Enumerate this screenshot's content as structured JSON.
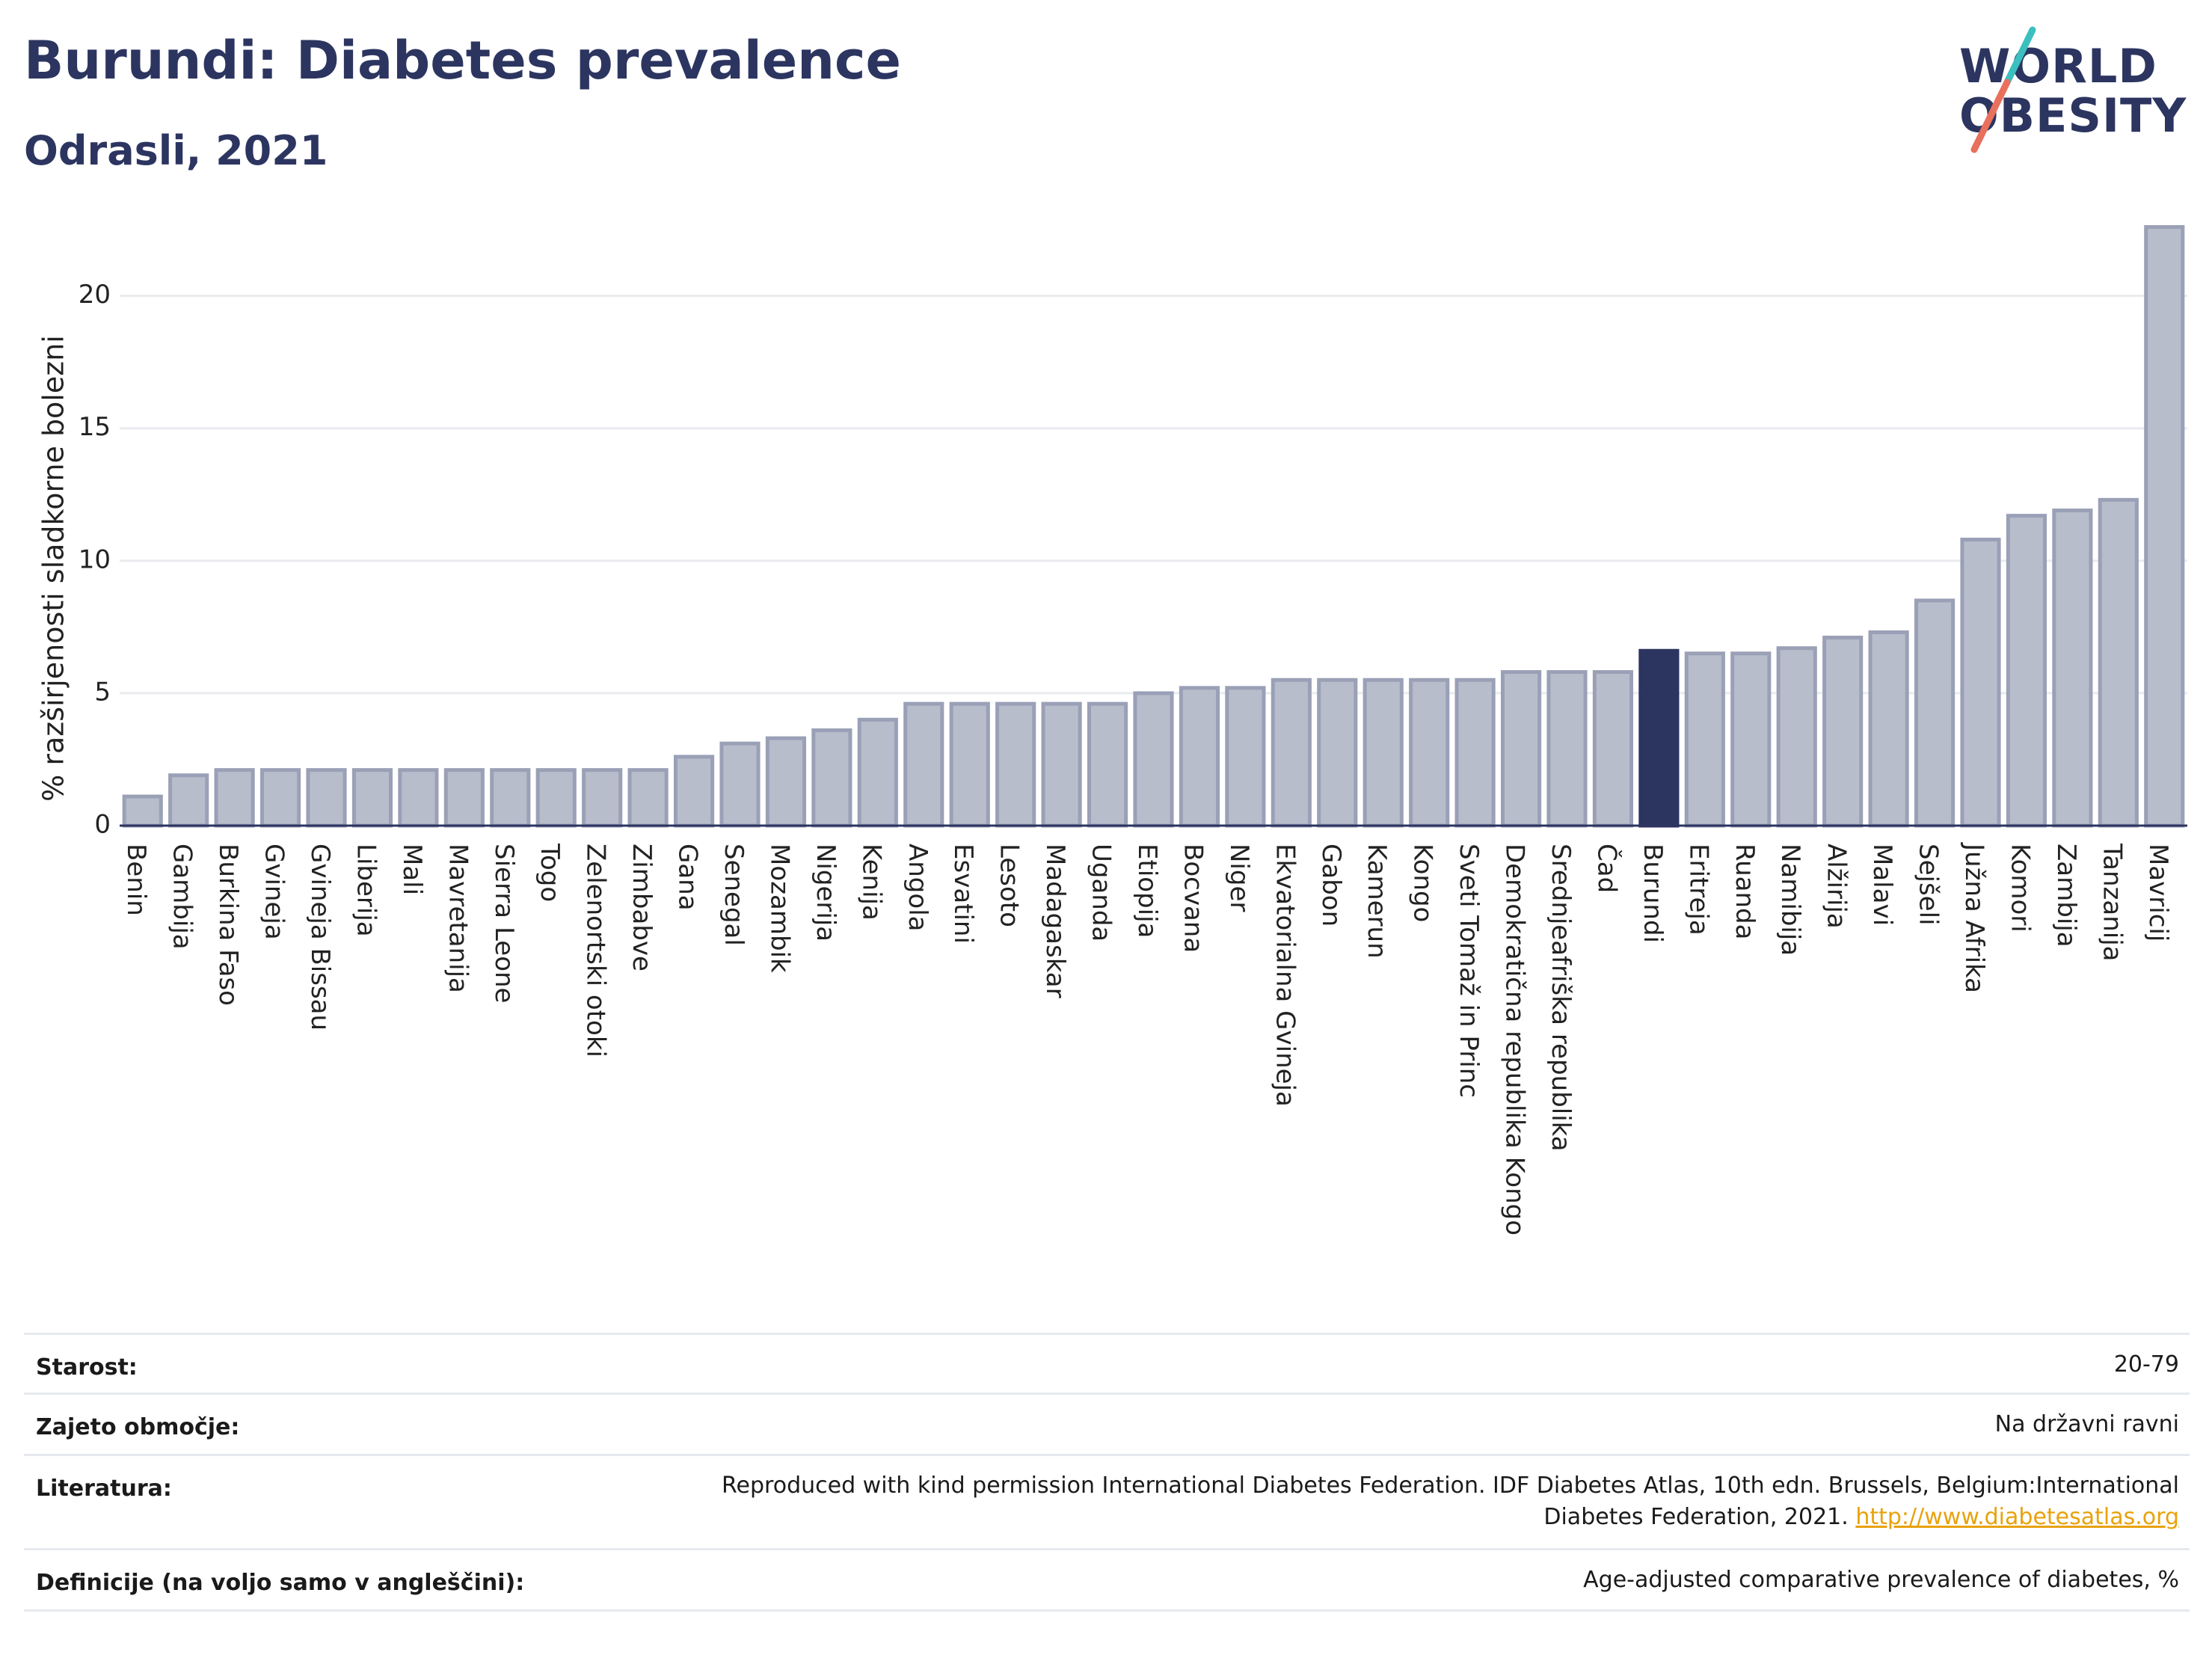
{
  "header": {
    "title": "Burundi: Diabetes prevalence",
    "subtitle": "Odrasli, 2021"
  },
  "logo": {
    "line1": "WORLD",
    "line2": "OBESITY",
    "colors": {
      "text": "#2c3560",
      "slash_top": "#3bbfbf",
      "slash_bottom": "#e8705c"
    }
  },
  "chart_data": {
    "type": "bar",
    "title": "",
    "xlabel": "",
    "ylabel": "% razširjenosti sladkorne bolezni",
    "ylim": [
      0,
      22.7
    ],
    "yticks": [
      0,
      5,
      10,
      15,
      20
    ],
    "grid": true,
    "highlight": "Burundi",
    "colors": {
      "bar": "#b8bdcc",
      "bar_stroke": "#9aa0b6",
      "highlight": "#2c3560",
      "grid": "#e9ebef"
    },
    "categories": [
      "Benin",
      "Gambija",
      "Burkina Faso",
      "Gvineja",
      "Gvineja Bissau",
      "Liberija",
      "Mali",
      "Mavretanija",
      "Sierra Leone",
      "Togo",
      "Zelenortski otoki",
      "Zimbabve",
      "Gana",
      "Senegal",
      "Mozambik",
      "Nigerija",
      "Kenija",
      "Angola",
      "Esvatini",
      "Lesoto",
      "Madagaskar",
      "Uganda",
      "Etiopija",
      "Bocvana",
      "Niger",
      "Ekvatorialna Gvineja",
      "Gabon",
      "Kamerun",
      "Kongo",
      "Sveti Tomaž in Princ",
      "Demokratična republika Kongo",
      "Srednjeafriška republika",
      "Čad",
      "Burundi",
      "Eritreja",
      "Ruanda",
      "Namibija",
      "Alžirija",
      "Malavi",
      "Sejšeli",
      "Južna Afrika",
      "Komori",
      "Zambija",
      "Tanzanija",
      "Mavricij"
    ],
    "values": [
      1.1,
      1.9,
      2.1,
      2.1,
      2.1,
      2.1,
      2.1,
      2.1,
      2.1,
      2.1,
      2.1,
      2.1,
      2.6,
      3.1,
      3.3,
      3.6,
      4.0,
      4.6,
      4.6,
      4.6,
      4.6,
      4.6,
      5.0,
      5.2,
      5.2,
      5.5,
      5.5,
      5.5,
      5.5,
      5.5,
      5.8,
      5.8,
      5.8,
      6.6,
      6.5,
      6.5,
      6.7,
      7.1,
      7.3,
      8.5,
      10.8,
      11.7,
      11.9,
      12.3,
      22.6
    ]
  },
  "meta": {
    "rows": [
      {
        "label": "Starost:",
        "value": "20-79"
      },
      {
        "label": "Zajeto območje:",
        "value": "Na državni ravni"
      },
      {
        "label": "Literatura:",
        "value_line1": "Reproduced with kind permission International Diabetes Federation.  IDF Diabetes Atlas, 10th edn. Brussels, Belgium:International",
        "value_line2": "Diabetes Federation, 2021.",
        "link": "http://www.diabetesatlas.org"
      },
      {
        "label": "Definicije (na voljo samo v angleščini):",
        "value": "Age-adjusted comparative prevalence of diabetes, %"
      }
    ]
  }
}
